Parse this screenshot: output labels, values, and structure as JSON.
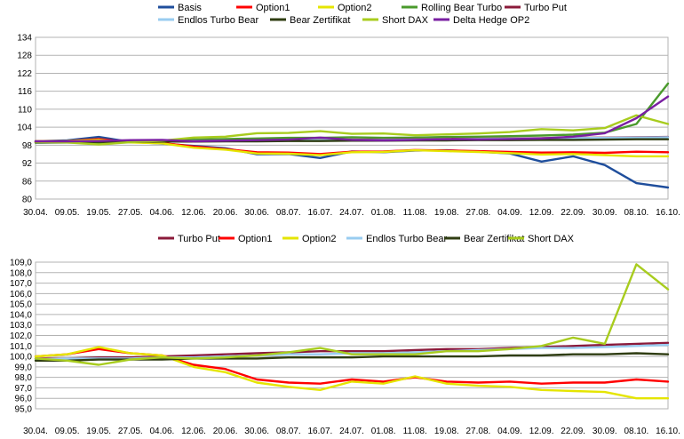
{
  "chart_data": [
    {
      "type": "line",
      "categories": [
        "30.04.",
        "09.05.",
        "19.05.",
        "27.05.",
        "04.06.",
        "12.06.",
        "20.06.",
        "30.06.",
        "08.07.",
        "16.07.",
        "24.07.",
        "01.08.",
        "11.08.",
        "19.08.",
        "27.08.",
        "04.09.",
        "12.09.",
        "22.09.",
        "30.09.",
        "08.10.",
        "16.10."
      ],
      "ylim": [
        80,
        136
      ],
      "yticks": [
        "80",
        "86",
        "92",
        "98",
        "104",
        "110",
        "116",
        "122",
        "128",
        "134"
      ],
      "grid": true,
      "legend": "top",
      "series": [
        {
          "name": "Basis",
          "color": "#1f4e9c",
          "values": [
            100,
            100.3,
            101.5,
            99.8,
            99.2,
            98.4,
            97.6,
            95.5,
            95.6,
            94.2,
            96.5,
            96.2,
            96.8,
            96.9,
            96.4,
            95.8,
            93.0,
            94.8,
            91.8,
            85.5,
            84.0
          ]
        },
        {
          "name": "Option1",
          "color": "#ff0000",
          "values": [
            100,
            100.1,
            100.8,
            99.7,
            99.4,
            98.2,
            97.3,
            96.2,
            96.1,
            95.6,
            96.4,
            96.5,
            97.0,
            96.8,
            96.6,
            96.3,
            96.1,
            96.2,
            96.0,
            96.4,
            96.2
          ]
        },
        {
          "name": "Option2",
          "color": "#e5e500",
          "values": [
            100,
            100.1,
            100.5,
            99.6,
            99.3,
            97.8,
            97.1,
            95.8,
            95.7,
            95.2,
            96.2,
            96.3,
            96.9,
            96.6,
            96.3,
            95.9,
            95.4,
            95.6,
            95.2,
            94.8,
            94.8
          ]
        },
        {
          "name": "Rolling Bear Turbo",
          "color": "#4a9a2c",
          "values": [
            99.5,
            99.6,
            99.3,
            99.8,
            100.2,
            100.6,
            100.8,
            101.0,
            101.2,
            101.2,
            101.4,
            101.2,
            101.3,
            101.5,
            101.6,
            101.8,
            102.0,
            102.3,
            103.0,
            106.0,
            120.0
          ]
        },
        {
          "name": "Turbo Put",
          "color": "#8b1a3a",
          "values": [
            99.8,
            99.8,
            99.9,
            99.8,
            100.0,
            100.1,
            100.2,
            100.3,
            100.4,
            100.5,
            100.6,
            100.6,
            100.7,
            100.8,
            100.9,
            101.0,
            101.1,
            101.2,
            101.3,
            101.4,
            101.5
          ]
        },
        {
          "name": "Endlos Turbo Bear",
          "color": "#99ccf0",
          "values": [
            99.8,
            99.8,
            99.9,
            99.9,
            100.0,
            100.1,
            100.2,
            100.3,
            100.4,
            100.4,
            100.5,
            100.5,
            100.6,
            100.7,
            100.8,
            100.9,
            101.0,
            101.1,
            101.2,
            101.3,
            101.4
          ]
        },
        {
          "name": "Bear Zertifikat",
          "color": "#2f3d12",
          "values": [
            99.7,
            99.7,
            99.8,
            99.8,
            99.9,
            99.9,
            100.0,
            100.0,
            100.1,
            100.1,
            100.2,
            100.2,
            100.3,
            100.3,
            100.4,
            100.4,
            100.5,
            100.5,
            100.6,
            100.7,
            100.7
          ]
        },
        {
          "name": "Short DAX",
          "color": "#a8cc1e",
          "values": [
            99.8,
            99.6,
            98.9,
            99.7,
            100.2,
            101.3,
            101.6,
            102.8,
            102.9,
            103.5,
            102.6,
            102.7,
            102.1,
            102.4,
            102.7,
            103.2,
            104.2,
            103.8,
            104.6,
            109.0,
            106.0
          ]
        },
        {
          "name": "Delta Hedge OP2",
          "color": "#7a1fa2",
          "values": [
            100,
            100.0,
            100.1,
            100.4,
            100.5,
            100.0,
            100.2,
            100.4,
            100.6,
            101.3,
            100.5,
            100.3,
            100.5,
            100.7,
            100.6,
            100.8,
            101.0,
            101.6,
            102.8,
            108.0,
            115.5
          ]
        }
      ]
    },
    {
      "type": "line",
      "categories": [
        "30.04.",
        "09.05.",
        "19.05.",
        "27.05.",
        "04.06.",
        "12.06.",
        "20.06.",
        "30.06.",
        "08.07.",
        "16.07.",
        "24.07.",
        "01.08.",
        "11.08.",
        "19.08.",
        "27.08.",
        "04.09.",
        "12.09.",
        "22.09.",
        "30.09.",
        "08.10.",
        "16.10."
      ],
      "ylim": [
        95,
        109
      ],
      "yticks": [
        "95,0",
        "96,0",
        "97,0",
        "98,0",
        "99,0",
        "100,0",
        "101,0",
        "102,0",
        "103,0",
        "104,0",
        "105,0",
        "106,0",
        "107,0",
        "108,0",
        "109,0"
      ],
      "grid": true,
      "legend": "top",
      "series": [
        {
          "name": "Turbo Put",
          "color": "#8b1a3a",
          "values": [
            99.8,
            99.8,
            99.9,
            99.9,
            100.0,
            100.1,
            100.2,
            100.3,
            100.4,
            100.5,
            100.5,
            100.5,
            100.6,
            100.7,
            100.7,
            100.8,
            100.9,
            101.0,
            101.1,
            101.2,
            101.3
          ]
        },
        {
          "name": "Option1",
          "color": "#ff0000",
          "values": [
            100.0,
            100.2,
            100.7,
            100.3,
            100.1,
            99.2,
            98.8,
            97.8,
            97.5,
            97.4,
            97.8,
            97.6,
            98.0,
            97.6,
            97.5,
            97.6,
            97.4,
            97.5,
            97.5,
            97.8,
            97.6
          ]
        },
        {
          "name": "Option2",
          "color": "#e5e500",
          "values": [
            100.0,
            100.2,
            100.9,
            100.3,
            100.1,
            99.0,
            98.5,
            97.5,
            97.1,
            96.8,
            97.6,
            97.4,
            98.1,
            97.4,
            97.2,
            97.1,
            96.8,
            96.7,
            96.6,
            96.0,
            96.0
          ]
        },
        {
          "name": "Endlos Turbo Bear",
          "color": "#99ccf0",
          "values": [
            99.7,
            99.8,
            99.8,
            99.8,
            99.9,
            99.9,
            100.0,
            100.1,
            100.2,
            100.2,
            100.3,
            100.3,
            100.4,
            100.5,
            100.6,
            100.7,
            100.8,
            100.8,
            100.9,
            101.0,
            101.1
          ]
        },
        {
          "name": "Bear Zertifikat",
          "color": "#2f3d12",
          "values": [
            99.6,
            99.6,
            99.7,
            99.7,
            99.7,
            99.8,
            99.8,
            99.8,
            99.9,
            99.9,
            99.9,
            100.0,
            100.0,
            100.0,
            100.0,
            100.1,
            100.1,
            100.2,
            100.2,
            100.3,
            100.2
          ]
        },
        {
          "name": "Short DAX",
          "color": "#a8cc1e",
          "values": [
            99.8,
            99.6,
            99.2,
            99.7,
            99.9,
            99.8,
            99.9,
            100.1,
            100.4,
            100.8,
            100.2,
            100.2,
            100.2,
            100.5,
            100.5,
            100.7,
            101.0,
            101.8,
            101.2,
            108.8,
            106.4
          ]
        }
      ]
    }
  ]
}
